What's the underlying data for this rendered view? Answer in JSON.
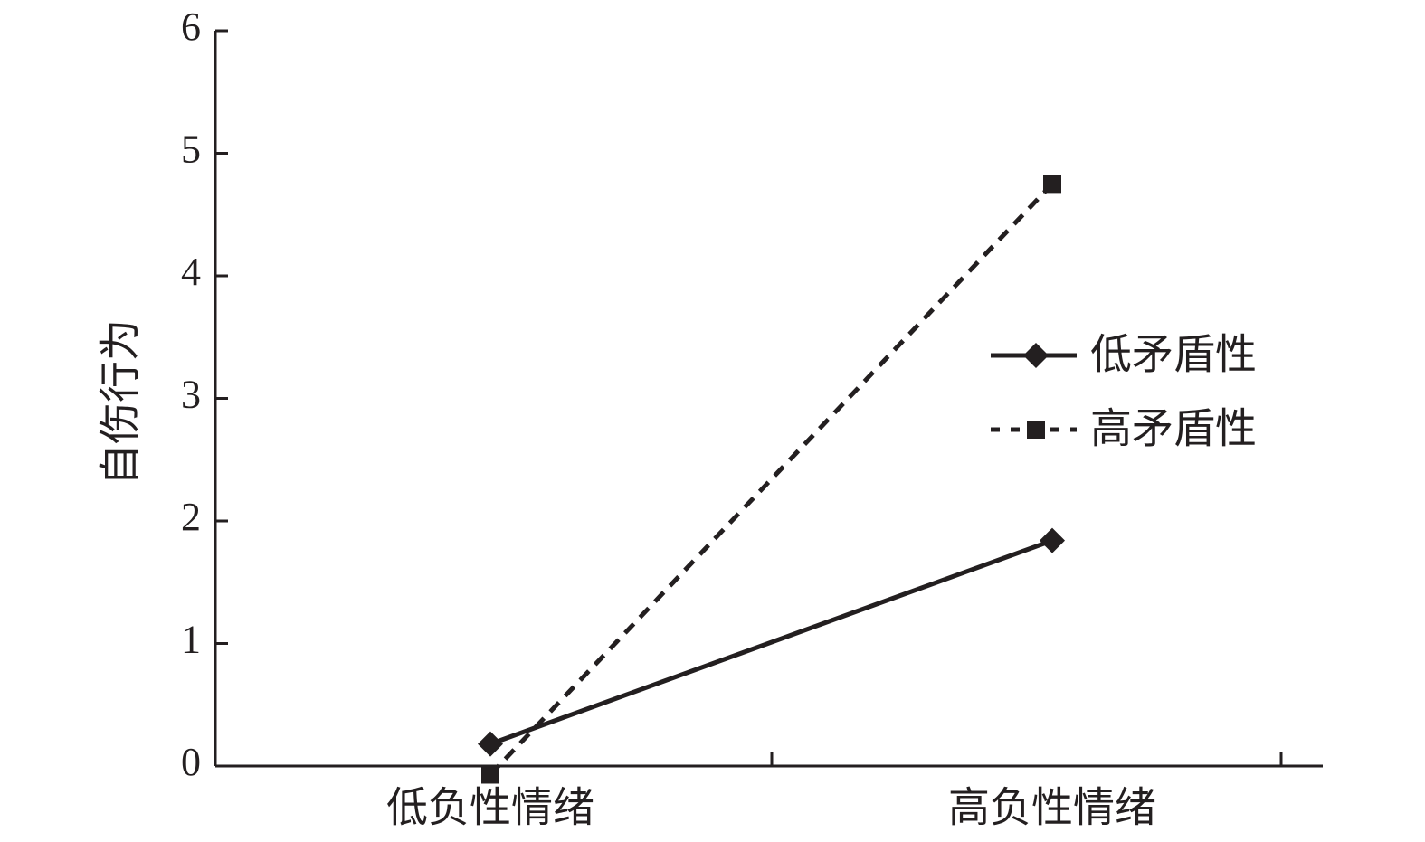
{
  "chart_data": {
    "type": "line",
    "y_label": "自伤行为",
    "categories": [
      "低负性情绪",
      "高负性情绪"
    ],
    "series": [
      {
        "name": "低矛盾性",
        "color": "#231f20",
        "marker": "diamond",
        "dash": "solid",
        "values": [
          0.18,
          1.84
        ]
      },
      {
        "name": "高矛盾性",
        "color": "#231f20",
        "marker": "square",
        "dash": "dotted",
        "values": [
          -0.07,
          4.75
        ]
      }
    ],
    "ylim": [
      0,
      6
    ],
    "yticks": [
      0,
      1,
      2,
      3,
      4,
      5,
      6
    ],
    "grid": false,
    "legend": "right"
  }
}
